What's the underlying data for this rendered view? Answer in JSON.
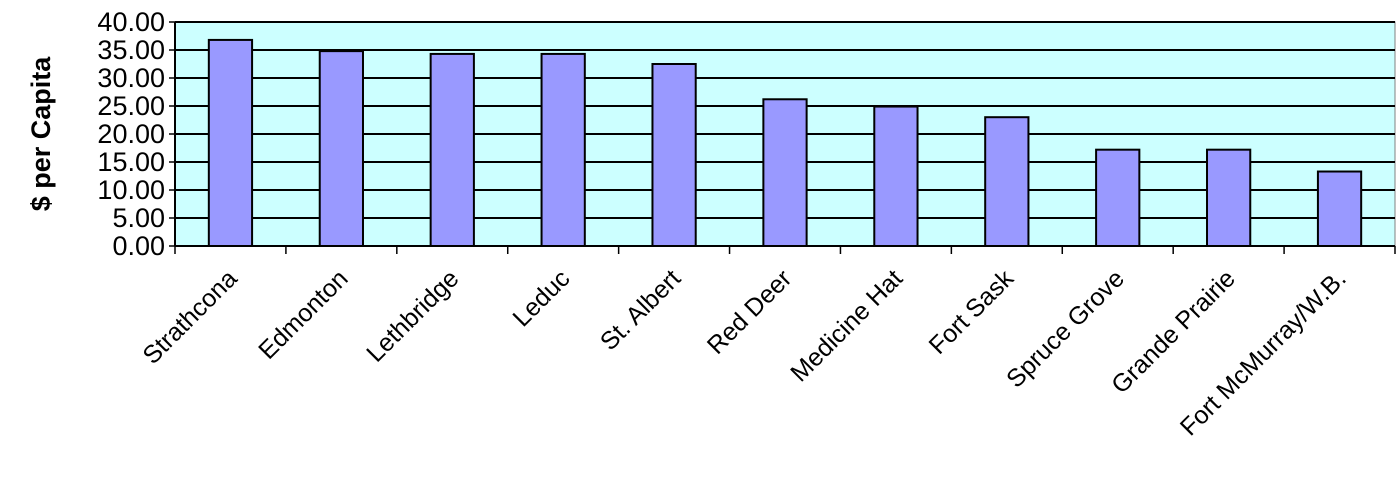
{
  "chart_data": {
    "type": "bar",
    "title": "",
    "xlabel": "",
    "ylabel": "$ per Capita",
    "ylim": [
      0,
      40
    ],
    "ytick_step": 5,
    "ytick_labels": [
      "0.00",
      "5.00",
      "10.00",
      "15.00",
      "20.00",
      "25.00",
      "30.00",
      "35.00",
      "40.00"
    ],
    "grid": true,
    "legend": "none",
    "categories": [
      "Strathcona",
      "Edmonton",
      "Lethbridge",
      "Leduc",
      "St. Albert",
      "Red Deer",
      "Medicine Hat",
      "Fort Sask",
      "Spruce Grove",
      "Grande Prairie",
      "Fort McMurray/W.B."
    ],
    "values": [
      36.8,
      34.8,
      34.3,
      34.3,
      32.5,
      26.2,
      24.9,
      23.0,
      17.2,
      17.2,
      13.3
    ],
    "colors": {
      "plot_background": "#ccffff",
      "bar_fill": "#9999ff",
      "bar_stroke": "#000000",
      "gridline": "#000000"
    }
  }
}
